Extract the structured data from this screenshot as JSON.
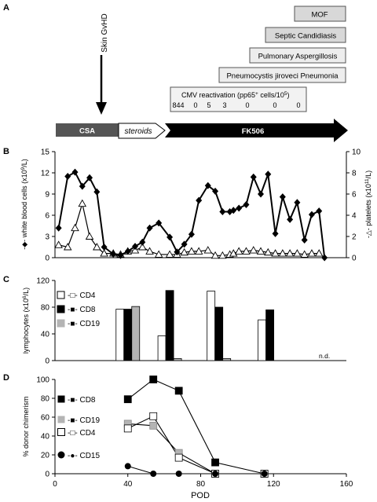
{
  "panels": {
    "a": "A",
    "b": "B",
    "c": "C",
    "d": "D"
  },
  "timeline": {
    "complications": [
      "MOF",
      "Septic Candidiasis",
      "Pulmonary Aspergillosis",
      "Pneumocystis jiroveci Pneumonia"
    ],
    "cmv_label_main": "CMV reactivation (pp65",
    "cmv_label_sup1": "+",
    "cmv_label_mid": " cells/10",
    "cmv_label_sup2": "5",
    "cmv_label_end": ")",
    "cmv_values": [
      "844",
      "0",
      "5",
      "3",
      "0",
      "0",
      "0"
    ],
    "skin_event": "Skin GvHD",
    "therapy": {
      "csa": "CSA",
      "steroids": "steroids",
      "fk506": "FK506"
    }
  },
  "chart_data": [
    {
      "panel": "B",
      "type": "line",
      "xlim": [
        0,
        160
      ],
      "ylim_left": [
        0,
        15
      ],
      "ylim_right": [
        0,
        10
      ],
      "yticks_left": [
        "0",
        "3",
        "6",
        "9",
        "12",
        "15"
      ],
      "yticks_right": [
        "0",
        "2",
        "4",
        "6",
        "8",
        "10"
      ],
      "ylabel_left": {
        "prefix": "-◆- white blood cells (x10",
        "sup": "9",
        "suffix": "/L)"
      },
      "ylabel_right": {
        "prefix": "-△- platelets (x10",
        "sup": "11",
        "suffix": "/L)"
      },
      "series": [
        {
          "name": "white blood cells",
          "marker": "diamond",
          "axis": "left",
          "x": [
            2,
            7,
            11,
            15,
            19,
            23,
            27,
            32,
            36,
            40,
            44,
            48,
            52,
            57,
            63,
            67,
            71,
            75,
            79,
            84,
            88,
            92,
            96,
            98,
            101,
            105,
            109,
            113,
            117,
            121,
            125,
            129,
            133,
            137,
            141,
            145,
            148
          ],
          "y": [
            4.2,
            11.5,
            12.1,
            10.1,
            11.3,
            9.3,
            1.5,
            0.5,
            0.3,
            0.9,
            1.6,
            2.2,
            4.2,
            4.9,
            2.9,
            0.8,
            1.9,
            3.3,
            8.1,
            10.2,
            9.4,
            6.5,
            6.5,
            6.7,
            7.0,
            7.5,
            11.4,
            9.0,
            11.8,
            3.4,
            8.6,
            5.4,
            7.8,
            2.5,
            6.1,
            6.6,
            0
          ]
        },
        {
          "name": "platelets",
          "marker": "triangle",
          "axis": "right",
          "x": [
            2,
            7,
            11,
            15,
            19,
            23,
            27,
            32,
            36,
            40,
            44,
            48,
            52,
            57,
            63,
            67,
            71,
            75,
            79,
            84,
            88,
            92,
            96,
            98,
            101,
            105,
            109,
            113,
            117,
            121,
            125,
            129,
            133,
            137,
            141,
            145
          ],
          "y": [
            1.2,
            1.0,
            2.8,
            5.1,
            2.0,
            1.0,
            0.4,
            0.4,
            0.3,
            0.6,
            0.7,
            1.0,
            0.6,
            0.3,
            0.3,
            0.3,
            0.5,
            0.6,
            0.6,
            0.7,
            0.2,
            0.2,
            0.3,
            0.4,
            0.6,
            0.6,
            0.7,
            0.6,
            0.5,
            0.4,
            0.4,
            0.4,
            0.4,
            0.3,
            0.4,
            0.4
          ]
        }
      ]
    },
    {
      "panel": "C",
      "type": "bar",
      "ylim": [
        0,
        120
      ],
      "yticks": [
        "0",
        "40",
        "80",
        "120"
      ],
      "ylabel": {
        "prefix": "lymphocytes (x10",
        "sup": "6",
        "suffix": "/L)"
      },
      "legend": [
        "-□- CD4",
        "-■- CD8",
        "-■- CD19"
      ],
      "groups": [
        {
          "x": 40,
          "CD4": 77,
          "CD8": 77,
          "CD19": 81
        },
        {
          "x": 63,
          "CD4": 37,
          "CD8": 105,
          "CD19": 3
        },
        {
          "x": 90,
          "CD4": 104,
          "CD8": 80,
          "CD19": 3
        },
        {
          "x": 118,
          "CD4": 61,
          "CD8": 76,
          "CD19": null
        }
      ],
      "annotation": "n.d."
    },
    {
      "panel": "D",
      "type": "line",
      "xlim": [
        0,
        160
      ],
      "ylim": [
        0,
        100
      ],
      "xticks": [
        "0",
        "40",
        "80",
        "120",
        "160"
      ],
      "yticks": [
        "0",
        "20",
        "40",
        "60",
        "80",
        "100"
      ],
      "xlabel": "POD",
      "ylabel": "% donor chimerism",
      "series": [
        {
          "name": "CD8",
          "label": "-■- CD8",
          "x": [
            40,
            54,
            68,
            88,
            115
          ],
          "y": [
            79,
            100,
            88,
            12,
            0
          ]
        },
        {
          "name": "CD19",
          "label": "-■- CD19",
          "x": [
            40,
            54,
            68,
            88,
            115
          ],
          "y": [
            53,
            51,
            22,
            0,
            0
          ]
        },
        {
          "name": "CD4",
          "label": "-□- CD4",
          "x": [
            40,
            54,
            68,
            88,
            115
          ],
          "y": [
            48,
            61,
            17,
            0,
            0
          ]
        },
        {
          "name": "CD15",
          "label": "-●- CD15",
          "x": [
            40,
            54,
            68,
            88,
            115
          ],
          "y": [
            8,
            0,
            0,
            0,
            0
          ]
        }
      ]
    }
  ]
}
